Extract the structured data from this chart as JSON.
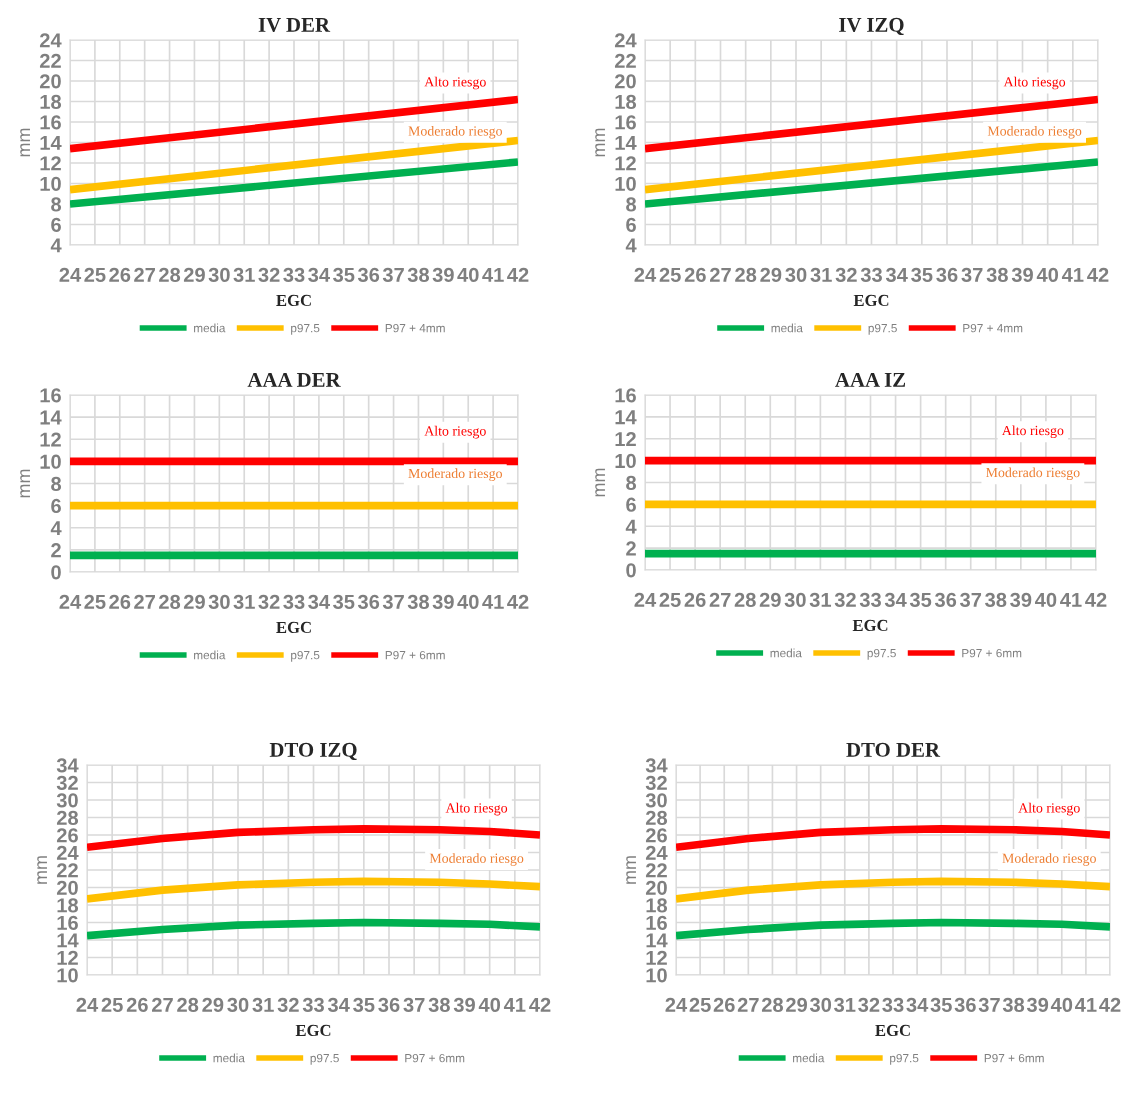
{
  "chart_data": [
    {
      "type": "line",
      "title": "IV DER",
      "xlabel": "EGC",
      "ylabel": "mm",
      "x": [
        24,
        42
      ],
      "xlim": [
        24,
        42
      ],
      "xticks": [
        24,
        25,
        26,
        27,
        28,
        29,
        30,
        31,
        32,
        33,
        34,
        35,
        36,
        37,
        38,
        39,
        40,
        41,
        42
      ],
      "ylim": [
        4,
        24
      ],
      "yticks": [
        4,
        6,
        8,
        10,
        12,
        14,
        16,
        18,
        20,
        22,
        24
      ],
      "grid": true,
      "legend": "bottom",
      "series": [
        {
          "name": "media",
          "color": "#00b050",
          "values": [
            8,
            12.1
          ]
        },
        {
          "name": "p97.5",
          "color": "#ffc000",
          "values": [
            9.4,
            14.2
          ]
        },
        {
          "name": "P97 + 4mm",
          "color": "#ff0000",
          "values": [
            13.4,
            18.2
          ]
        }
      ],
      "annotations": [
        "Alto riesgo",
        "Moderado riesgo"
      ]
    },
    {
      "type": "line",
      "title": "IV IZQ",
      "xlabel": "EGC",
      "ylabel": "mm",
      "x": [
        24,
        42
      ],
      "xlim": [
        24,
        42
      ],
      "xticks": [
        24,
        25,
        26,
        27,
        28,
        29,
        30,
        31,
        32,
        33,
        34,
        35,
        36,
        37,
        38,
        39,
        40,
        41,
        42
      ],
      "ylim": [
        4,
        24
      ],
      "yticks": [
        4,
        6,
        8,
        10,
        12,
        14,
        16,
        18,
        20,
        22,
        24
      ],
      "grid": true,
      "legend": "bottom",
      "series": [
        {
          "name": "media",
          "color": "#00b050",
          "values": [
            8,
            12.1
          ]
        },
        {
          "name": "p97.5",
          "color": "#ffc000",
          "values": [
            9.4,
            14.2
          ]
        },
        {
          "name": "P97 + 4mm",
          "color": "#ff0000",
          "values": [
            13.4,
            18.2
          ]
        }
      ],
      "annotations": [
        "Alto riesgo",
        "Moderado riesgo"
      ]
    },
    {
      "type": "line",
      "title": "AAA DER",
      "xlabel": "EGC",
      "ylabel": "mm",
      "x": [
        24,
        42
      ],
      "xlim": [
        24,
        42
      ],
      "xticks": [
        24,
        25,
        26,
        27,
        28,
        29,
        30,
        31,
        32,
        33,
        34,
        35,
        36,
        37,
        38,
        39,
        40,
        41,
        42
      ],
      "ylim": [
        0,
        16
      ],
      "yticks": [
        0,
        2,
        4,
        6,
        8,
        10,
        12,
        14,
        16
      ],
      "grid": true,
      "legend": "bottom",
      "series": [
        {
          "name": "media",
          "color": "#00b050",
          "values": [
            1.5,
            1.5
          ]
        },
        {
          "name": "p97.5",
          "color": "#ffc000",
          "values": [
            6,
            6
          ]
        },
        {
          "name": "P97 + 6mm",
          "color": "#ff0000",
          "values": [
            10,
            10
          ]
        }
      ],
      "annotations": [
        "Alto riesgo",
        "Moderado riesgo"
      ]
    },
    {
      "type": "line",
      "title": "AAA IZ",
      "xlabel": "EGC",
      "ylabel": "mm",
      "x": [
        24,
        42
      ],
      "xlim": [
        24,
        42
      ],
      "xticks": [
        24,
        25,
        26,
        27,
        28,
        29,
        30,
        31,
        32,
        33,
        34,
        35,
        36,
        37,
        38,
        39,
        40,
        41,
        42
      ],
      "ylim": [
        0,
        16
      ],
      "yticks": [
        0,
        2,
        4,
        6,
        8,
        10,
        12,
        14,
        16
      ],
      "grid": true,
      "legend": "bottom",
      "series": [
        {
          "name": "media",
          "color": "#00b050",
          "values": [
            1.5,
            1.5
          ]
        },
        {
          "name": "p97.5",
          "color": "#ffc000",
          "values": [
            6,
            6
          ]
        },
        {
          "name": "P97 + 6mm",
          "color": "#ff0000",
          "values": [
            10,
            10
          ]
        }
      ],
      "annotations": [
        "Alto riesgo",
        "Moderado riesgo"
      ]
    },
    {
      "type": "line",
      "title": "DTO IZQ",
      "xlabel": "EGC",
      "ylabel": "mm",
      "x": [
        24,
        27,
        30,
        33,
        35,
        38,
        40,
        42
      ],
      "xlim": [
        24,
        42
      ],
      "xticks": [
        24,
        25,
        26,
        27,
        28,
        29,
        30,
        31,
        32,
        33,
        34,
        35,
        36,
        37,
        38,
        39,
        40,
        41,
        42
      ],
      "ylim": [
        10,
        34
      ],
      "yticks": [
        10,
        12,
        14,
        16,
        18,
        20,
        22,
        24,
        26,
        28,
        30,
        32,
        34
      ],
      "grid": true,
      "legend": "bottom",
      "series": [
        {
          "name": "media",
          "color": "#00b050",
          "values": [
            14.5,
            15.2,
            15.7,
            15.9,
            16.0,
            15.9,
            15.8,
            15.5
          ]
        },
        {
          "name": "p97.5",
          "color": "#ffc000",
          "values": [
            18.7,
            19.7,
            20.3,
            20.6,
            20.7,
            20.6,
            20.4,
            20.1
          ]
        },
        {
          "name": "P97 + 6mm",
          "color": "#ff0000",
          "values": [
            24.6,
            25.6,
            26.3,
            26.6,
            26.7,
            26.6,
            26.4,
            26.0
          ]
        }
      ],
      "annotations": [
        "Alto riesgo",
        "Moderado riesgo"
      ]
    },
    {
      "type": "line",
      "title": "DTO DER",
      "xlabel": "EGC",
      "ylabel": "mm",
      "x": [
        24,
        27,
        30,
        33,
        35,
        38,
        40,
        42
      ],
      "xlim": [
        24,
        42
      ],
      "xticks": [
        24,
        25,
        26,
        27,
        28,
        29,
        30,
        31,
        32,
        33,
        34,
        35,
        36,
        37,
        38,
        39,
        40,
        41,
        42
      ],
      "ylim": [
        10,
        34
      ],
      "yticks": [
        10,
        12,
        14,
        16,
        18,
        20,
        22,
        24,
        26,
        28,
        30,
        32,
        34
      ],
      "grid": true,
      "legend": "bottom",
      "series": [
        {
          "name": "media",
          "color": "#00b050",
          "values": [
            14.5,
            15.2,
            15.7,
            15.9,
            16.0,
            15.9,
            15.8,
            15.5
          ]
        },
        {
          "name": "p97.5",
          "color": "#ffc000",
          "values": [
            18.7,
            19.7,
            20.3,
            20.6,
            20.7,
            20.6,
            20.4,
            20.1
          ]
        },
        {
          "name": "P97 + 6mm",
          "color": "#ff0000",
          "values": [
            24.6,
            25.6,
            26.3,
            26.6,
            26.7,
            26.6,
            26.4,
            26.0
          ]
        }
      ],
      "annotations": [
        "Alto riesgo",
        "Moderado riesgo"
      ]
    }
  ]
}
